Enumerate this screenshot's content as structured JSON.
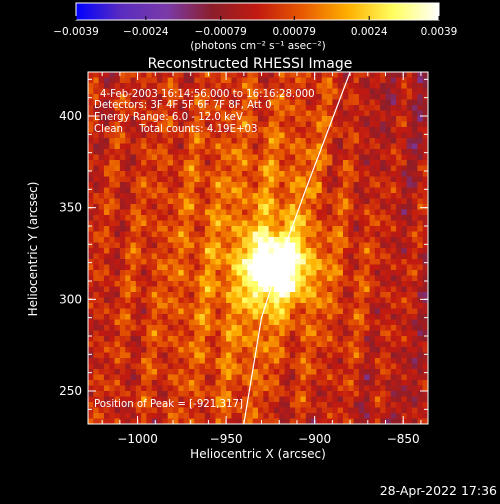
{
  "chart_data": {
    "type": "heatmap",
    "title": "Reconstructed RHESSI Image",
    "xlabel": "Heliocentric X (arcsec)",
    "ylabel": "Heliocentric Y (arcsec)",
    "xlim": [
      -1028,
      -836
    ],
    "ylim": [
      232,
      424
    ],
    "x_ticks": [
      -1000,
      -950,
      -900,
      -850
    ],
    "y_ticks": [
      250,
      300,
      350,
      400
    ],
    "x_tick_labels": [
      "−1000",
      "−950",
      "−900",
      "−850"
    ],
    "y_tick_labels": [
      "250",
      "300",
      "350",
      "400"
    ],
    "colorbar": {
      "min": -0.0039,
      "max": 0.0039,
      "ticks": [
        -0.0039,
        -0.0024,
        -0.00079,
        0.00079,
        0.0024,
        0.0039
      ],
      "tick_labels": [
        "−0.0039",
        "−0.0024",
        "−0.00079",
        "0.00079",
        "0.0024",
        "0.0039"
      ],
      "units_label": "(photons cm⁻² s⁻¹ asec⁻²)",
      "colors": [
        "#0000ff",
        "#5a2cbf",
        "#7a3aa8",
        "#8b1e2a",
        "#c21a10",
        "#e85a00",
        "#ffb000",
        "#ffff60",
        "#ffffff"
      ]
    },
    "annotations": [
      "4-Feb-2003 16:14:56.000 to 16:16:28.000",
      "Detectors: 3F 4F 5F 6F 7F 8F, Att 0",
      "Energy Range: 6.0 - 12.0 keV",
      "Clean     Total counts: 4.19E+03",
      "Position of Peak = [-921,317]"
    ],
    "peak": {
      "x": -921,
      "y": 317,
      "value": 0.0039
    },
    "limb_curve": [
      [
        -940,
        232
      ],
      [
        -930,
        290
      ],
      [
        -920,
        320
      ],
      [
        -905,
        360
      ],
      [
        -880,
        424
      ]
    ]
  },
  "footer": {
    "timestamp": "28-Apr-2022 17:36"
  }
}
